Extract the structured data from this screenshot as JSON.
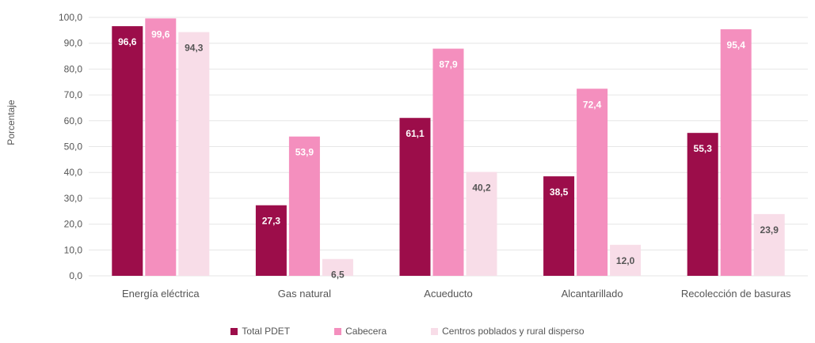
{
  "chart_data": {
    "type": "bar",
    "title": "",
    "xlabel": "",
    "ylabel": "Porcentaje",
    "ylim": [
      0,
      100
    ],
    "yticks": [
      "0,0",
      "10,0",
      "20,0",
      "30,0",
      "40,0",
      "50,0",
      "60,0",
      "70,0",
      "80,0",
      "90,0",
      "100,0"
    ],
    "categories": [
      "Energía eléctrica",
      "Gas natural",
      "Acueducto",
      "Alcantarillado",
      "Recolección de basuras"
    ],
    "series": [
      {
        "name": "Total PDET",
        "color": "#9c0d4a",
        "label_color": "#ffffff",
        "values": [
          96.6,
          27.3,
          61.1,
          38.5,
          55.3
        ],
        "labels": [
          "96,6",
          "27,3",
          "61,1",
          "38,5",
          "55,3"
        ]
      },
      {
        "name": "Cabecera",
        "color": "#f48fbe",
        "label_color": "#ffffff",
        "values": [
          99.6,
          53.9,
          87.9,
          72.4,
          95.4
        ],
        "labels": [
          "99,6",
          "53,9",
          "87,9",
          "72,4",
          "95,4"
        ]
      },
      {
        "name": "Centros poblados y rural disperso",
        "color": "#f8dde8",
        "label_color": "#555555",
        "values": [
          94.3,
          6.5,
          40.2,
          12.0,
          23.9
        ],
        "labels": [
          "94,3",
          "6,5",
          "40,2",
          "12,0",
          "23,9"
        ]
      }
    ],
    "grid": true,
    "legend_position": "bottom"
  }
}
